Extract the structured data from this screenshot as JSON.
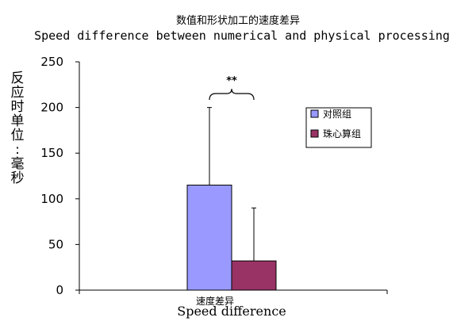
{
  "chart_data": {
    "type": "bar",
    "title": "数值和形状加工的速度差异",
    "subtitle": "Speed difference between numerical and physical processing",
    "ylabel": "反应时单位:毫秒",
    "categories": [
      "速度差异"
    ],
    "xlabel": "Speed difference",
    "ylim": [
      0,
      250
    ],
    "yticks": [
      0,
      50,
      100,
      150,
      200,
      250
    ],
    "series": [
      {
        "name": "对照组",
        "values": [
          115
        ],
        "error_upper": [
          200
        ],
        "color": "#9999ff"
      },
      {
        "name": "珠心算组",
        "values": [
          32
        ],
        "error_upper": [
          90
        ],
        "color": "#993366"
      }
    ],
    "significance": "**",
    "legend_position": "right",
    "grid": false
  }
}
